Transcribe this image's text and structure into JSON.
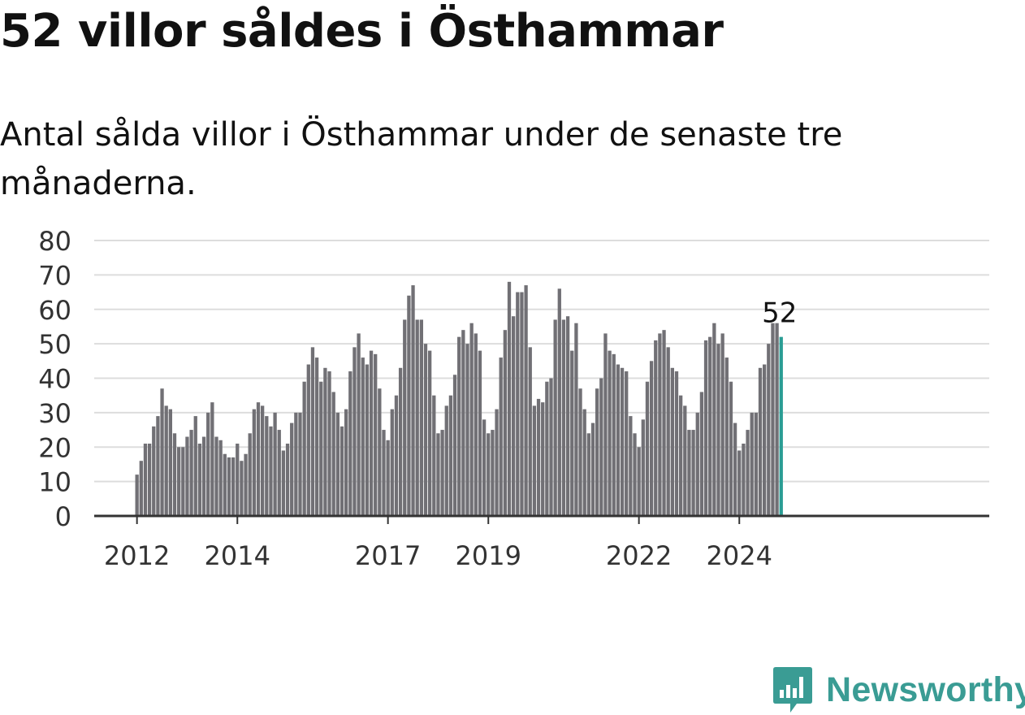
{
  "title": "52 villor såldes i Östhammar",
  "subtitle": "Antal sålda villor i Östhammar under de senaste tre månaderna.",
  "brand": {
    "name": "Newsworthy",
    "icon": "newsworthy-logo-icon",
    "color": "#3a9c94"
  },
  "chart_data": {
    "type": "bar",
    "title": "52 villor såldes i Östhammar",
    "subtitle": "Antal sålda villor i Östhammar under de senaste tre månaderna.",
    "xlabel": "",
    "ylabel": "",
    "ylim": [
      0,
      80
    ],
    "yticks": [
      0,
      10,
      20,
      30,
      40,
      50,
      60,
      70,
      80
    ],
    "grid": true,
    "bar_color": "#717075",
    "highlight_color": "#2a9d94",
    "start": "2012-01",
    "xtick_labels": [
      {
        "label": "2012",
        "at": "2012-01"
      },
      {
        "label": "2014",
        "at": "2014-01"
      },
      {
        "label": "2017",
        "at": "2017-01"
      },
      {
        "label": "2019",
        "at": "2019-01"
      },
      {
        "label": "2022",
        "at": "2022-01"
      },
      {
        "label": "2024",
        "at": "2024-01"
      }
    ],
    "last_value_label": "52",
    "values": [
      12,
      16,
      21,
      21,
      26,
      29,
      37,
      32,
      31,
      24,
      20,
      20,
      23,
      25,
      29,
      21,
      23,
      30,
      33,
      23,
      22,
      18,
      17,
      17,
      21,
      16,
      18,
      24,
      31,
      33,
      32,
      29,
      26,
      30,
      25,
      19,
      21,
      27,
      30,
      30,
      39,
      44,
      49,
      46,
      39,
      43,
      42,
      36,
      30,
      26,
      31,
      42,
      49,
      53,
      46,
      44,
      48,
      47,
      37,
      25,
      22,
      31,
      35,
      43,
      57,
      64,
      67,
      57,
      57,
      50,
      48,
      35,
      24,
      25,
      32,
      35,
      41,
      52,
      54,
      50,
      56,
      53,
      48,
      28,
      24,
      25,
      31,
      46,
      54,
      68,
      58,
      65,
      65,
      67,
      49,
      32,
      34,
      33,
      39,
      40,
      57,
      66,
      57,
      58,
      48,
      56,
      37,
      31,
      24,
      27,
      37,
      40,
      53,
      48,
      47,
      44,
      43,
      42,
      29,
      24,
      20,
      28,
      39,
      45,
      51,
      53,
      54,
      49,
      43,
      42,
      35,
      32,
      25,
      25,
      30,
      36,
      51,
      52,
      56,
      50,
      53,
      46,
      39,
      27,
      19,
      21,
      25,
      30,
      30,
      43,
      44,
      50,
      56,
      56,
      52
    ]
  }
}
